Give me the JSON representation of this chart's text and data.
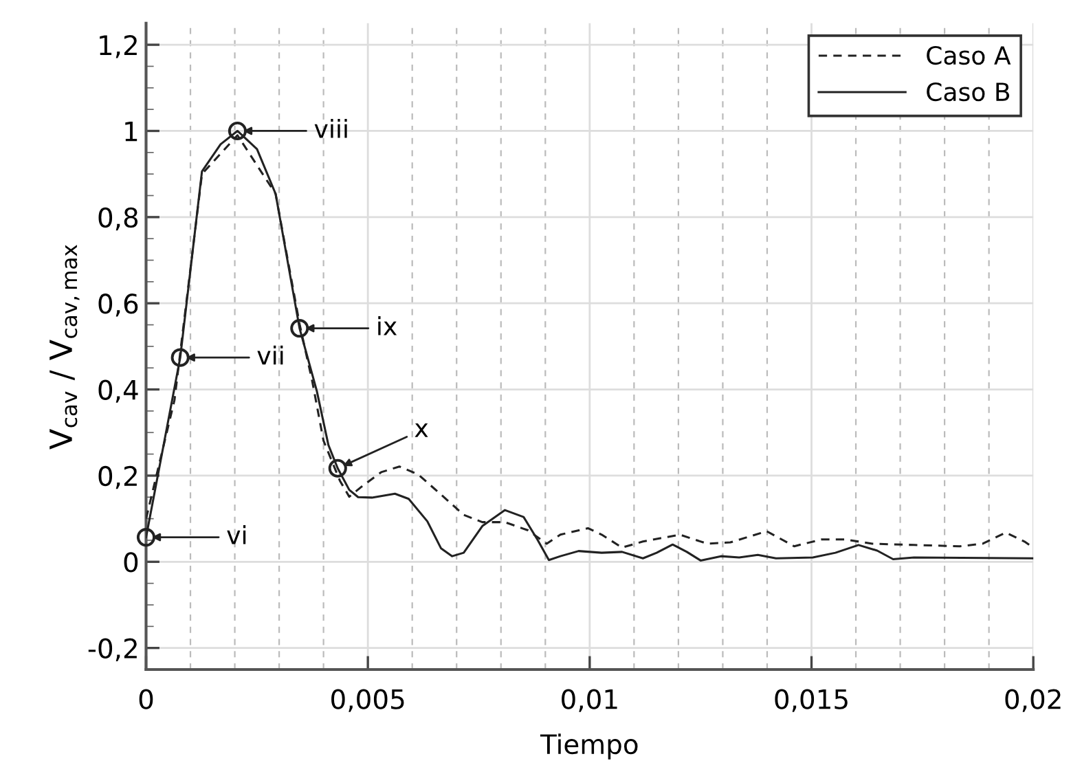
{
  "chart_data": {
    "type": "line",
    "xlabel": "Tiempo",
    "ylabel": "V$_{cav}$ / V$_{cav,max}$",
    "xlim": [
      0,
      0.02
    ],
    "ylim": [
      -0.25,
      1.25
    ],
    "xticks": [
      {
        "value": 0,
        "label": "0"
      },
      {
        "value": 0.001,
        "label": null
      },
      {
        "value": 0.002,
        "label": null
      },
      {
        "value": 0.003,
        "label": null
      },
      {
        "value": 0.004,
        "label": null
      },
      {
        "value": 0.005,
        "label": "0,005"
      },
      {
        "value": 0.006,
        "label": null
      },
      {
        "value": 0.007,
        "label": null
      },
      {
        "value": 0.008,
        "label": null
      },
      {
        "value": 0.009,
        "label": null
      },
      {
        "value": 0.01,
        "label": "0,01"
      },
      {
        "value": 0.011,
        "label": null
      },
      {
        "value": 0.012,
        "label": null
      },
      {
        "value": 0.013,
        "label": null
      },
      {
        "value": 0.014,
        "label": null
      },
      {
        "value": 0.015,
        "label": "0,015"
      },
      {
        "value": 0.016,
        "label": null
      },
      {
        "value": 0.017,
        "label": null
      },
      {
        "value": 0.018,
        "label": null
      },
      {
        "value": 0.019,
        "label": null
      },
      {
        "value": 0.02,
        "label": "0,02"
      }
    ],
    "yticks": [
      {
        "value": -0.2,
        "label": "-0,2"
      },
      {
        "value": -0.15,
        "label": null
      },
      {
        "value": -0.1,
        "label": null
      },
      {
        "value": -0.05,
        "label": null
      },
      {
        "value": 0,
        "label": "0"
      },
      {
        "value": 0.05,
        "label": null
      },
      {
        "value": 0.1,
        "label": null
      },
      {
        "value": 0.15,
        "label": null
      },
      {
        "value": 0.2,
        "label": "0,2"
      },
      {
        "value": 0.25,
        "label": null
      },
      {
        "value": 0.3,
        "label": null
      },
      {
        "value": 0.35,
        "label": null
      },
      {
        "value": 0.4,
        "label": "0,4"
      },
      {
        "value": 0.45,
        "label": null
      },
      {
        "value": 0.5,
        "label": null
      },
      {
        "value": 0.55,
        "label": null
      },
      {
        "value": 0.6,
        "label": "0,6"
      },
      {
        "value": 0.65,
        "label": null
      },
      {
        "value": 0.7,
        "label": null
      },
      {
        "value": 0.75,
        "label": null
      },
      {
        "value": 0.8,
        "label": "0,8"
      },
      {
        "value": 0.85,
        "label": null
      },
      {
        "value": 0.9,
        "label": null
      },
      {
        "value": 0.95,
        "label": null
      },
      {
        "value": 1,
        "label": "1"
      },
      {
        "value": 1.05,
        "label": null
      },
      {
        "value": 1.1,
        "label": null
      },
      {
        "value": 1.15,
        "label": null
      },
      {
        "value": 1.2,
        "label": "1,2"
      }
    ],
    "grid": true,
    "legend": "top right",
    "series": [
      {
        "name": "Caso A",
        "color": "#222222",
        "line_style": "dashed",
        "marker": "none",
        "x": [
          0,
          0.00028,
          0.00064,
          0.00126,
          0.00206,
          0.00292,
          0.00346,
          0.00375,
          0.004,
          0.00437,
          0.00458,
          0.00489,
          0.0053,
          0.00571,
          0.00613,
          0.00665,
          0.00716,
          0.00758,
          0.00809,
          0.00861,
          0.00903,
          0.00934,
          0.00996,
          0.01027,
          0.01073,
          0.0112,
          0.01203,
          0.01265,
          0.01317,
          0.01399,
          0.01461,
          0.01523,
          0.01575,
          0.01637,
          0.01731,
          0.01834,
          0.01886,
          0.01938,
          0.0198,
          0.02
        ],
        "values": [
          0.1,
          0.22,
          0.375,
          0.9,
          0.99,
          0.854,
          0.552,
          0.417,
          0.281,
          0.188,
          0.151,
          0.177,
          0.208,
          0.221,
          0.203,
          0.156,
          0.109,
          0.092,
          0.092,
          0.073,
          0.042,
          0.063,
          0.078,
          0.063,
          0.033,
          0.047,
          0.063,
          0.042,
          0.045,
          0.071,
          0.036,
          0.052,
          0.052,
          0.042,
          0.039,
          0.036,
          0.042,
          0.068,
          0.047,
          0.033
        ]
      },
      {
        "name": "Caso B",
        "color": "#222222",
        "line_style": "solid",
        "marker": "none",
        "x": [
          0,
          0.00077,
          0.00126,
          0.00168,
          0.00206,
          0.0025,
          0.00292,
          0.00346,
          0.00385,
          0.00411,
          0.00432,
          0.00458,
          0.00478,
          0.00509,
          0.00561,
          0.00592,
          0.00634,
          0.00665,
          0.0069,
          0.00716,
          0.00758,
          0.00809,
          0.00851,
          0.00882,
          0.00908,
          0.00934,
          0.00975,
          0.01027,
          0.01073,
          0.0112,
          0.01151,
          0.01187,
          0.01219,
          0.0125,
          0.01296,
          0.01337,
          0.01379,
          0.0142,
          0.01503,
          0.01554,
          0.01606,
          0.01648,
          0.01684,
          0.01731,
          0.02
        ],
        "values": [
          0.057,
          0.474,
          0.906,
          0.969,
          1.0,
          0.958,
          0.854,
          0.542,
          0.396,
          0.271,
          0.217,
          0.167,
          0.15,
          0.149,
          0.158,
          0.146,
          0.094,
          0.031,
          0.013,
          0.021,
          0.083,
          0.12,
          0.104,
          0.052,
          0.004,
          0.013,
          0.025,
          0.021,
          0.023,
          0.008,
          0.021,
          0.04,
          0.023,
          0.003,
          0.013,
          0.01,
          0.016,
          0.008,
          0.01,
          0.021,
          0.039,
          0.026,
          0.006,
          0.01,
          0.008
        ]
      },
      {
        "type": "scatter",
        "color": "#222222",
        "marker": "circle",
        "x": [
          0,
          0.00077,
          0.00206,
          0.00346,
          0.00432
        ],
        "values": [
          0.057,
          0.474,
          1.0,
          0.542,
          0.217
        ]
      }
    ],
    "annotations": [
      "vi",
      "vii",
      "viii",
      "ix",
      {
        "text": "x",
        "x": 0.00432,
        "y": 0.217
      }
    ]
  }
}
